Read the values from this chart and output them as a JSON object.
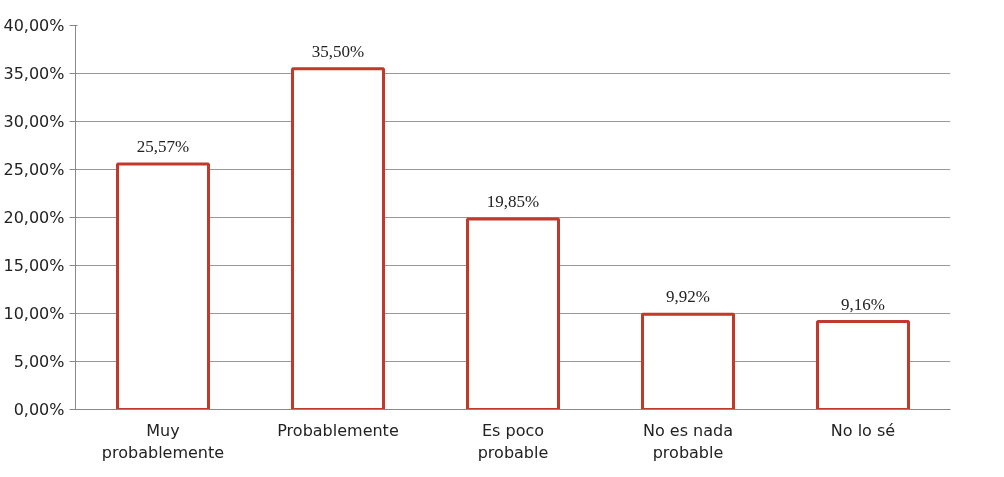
{
  "chart_data": {
    "type": "bar",
    "categories": [
      "Muy probablemente",
      "Probablemente",
      "Es poco probable",
      "No es nada probable",
      "No lo sé"
    ],
    "values": [
      25.57,
      35.5,
      19.85,
      9.92,
      9.16
    ],
    "value_labels": [
      "25,57%",
      "35,50%",
      "19,85%",
      "9,92%",
      "9,16%"
    ],
    "color": "#c0392b",
    "ylim": [
      0,
      40
    ],
    "yticks": [
      {
        "value": 0,
        "label": "0,00%"
      },
      {
        "value": 5,
        "label": "5,00%"
      },
      {
        "value": 10,
        "label": "10,00%"
      },
      {
        "value": 15,
        "label": "15,00%"
      },
      {
        "value": 20,
        "label": "20,00%"
      },
      {
        "value": 25,
        "label": "25,00%"
      },
      {
        "value": 30,
        "label": "30,00%"
      },
      {
        "value": 35,
        "label": "35,00%"
      },
      {
        "value": 40,
        "label": "40,00%"
      }
    ],
    "grid": "y"
  }
}
